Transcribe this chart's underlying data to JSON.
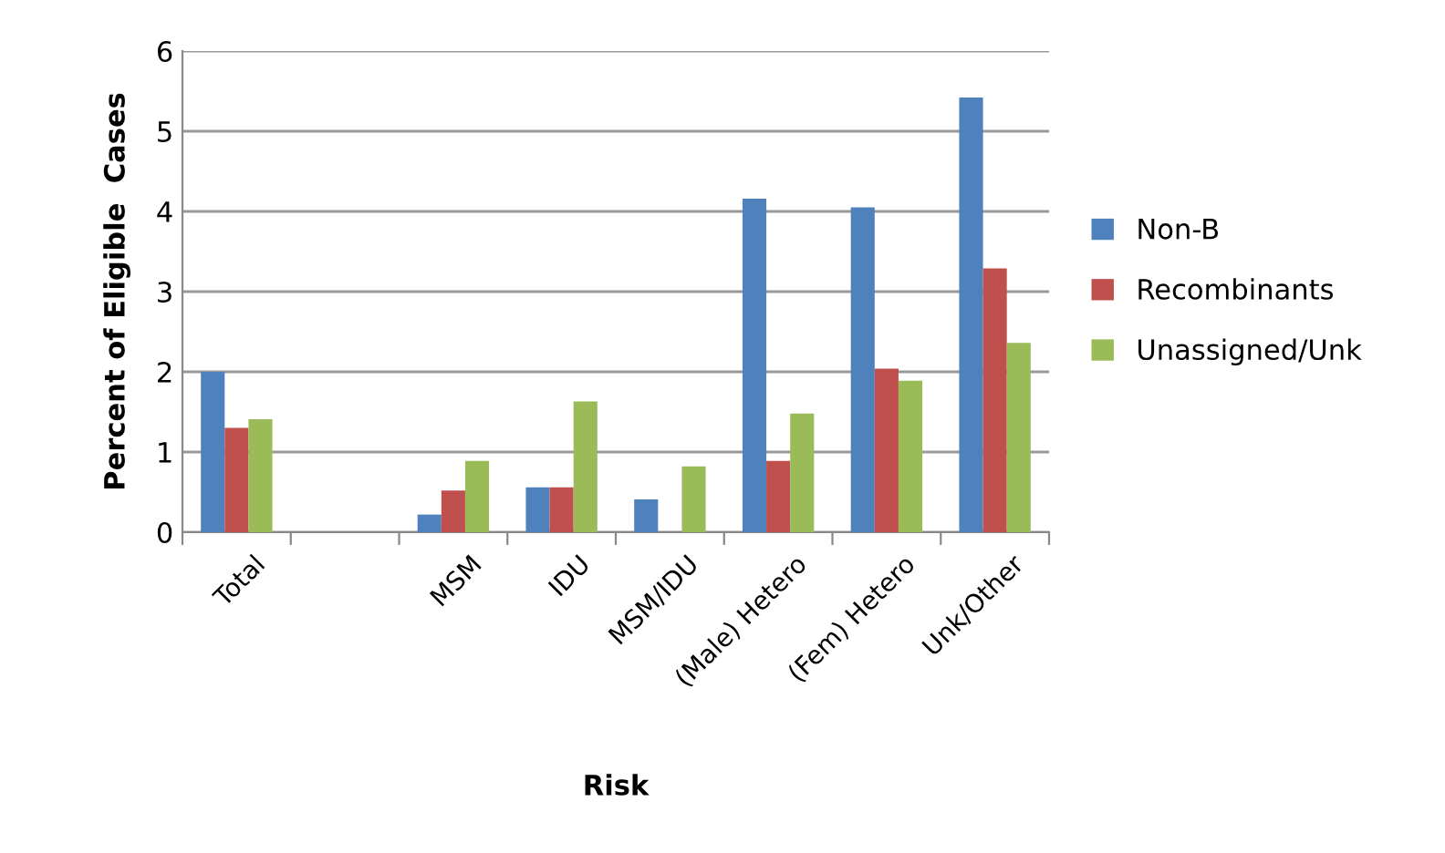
{
  "chart_data": {
    "type": "bar",
    "xlabel": "Risk",
    "ylabel": "Percent of Eligible  Cases",
    "categories": [
      "Total",
      null,
      "MSM",
      "IDU",
      "MSM/IDU",
      "(Male) Hetero",
      "(Fem) Hetero",
      "Unk/Other"
    ],
    "series": [
      {
        "name": "Non-B",
        "color": "#4f81bd",
        "values": [
          2.0,
          null,
          0.22,
          0.56,
          0.41,
          4.16,
          4.05,
          5.42
        ]
      },
      {
        "name": "Recombinants",
        "color": "#c0504d",
        "values": [
          1.3,
          null,
          0.52,
          0.56,
          null,
          0.89,
          2.04,
          3.29
        ]
      },
      {
        "name": "Unassigned/Unk",
        "color": "#9bbb59",
        "values": [
          1.41,
          null,
          0.89,
          1.63,
          0.82,
          1.48,
          1.89,
          2.36
        ]
      }
    ],
    "ylim": [
      0,
      6
    ],
    "yticks": [
      0,
      1,
      2,
      3,
      4,
      5,
      6
    ],
    "grid": "y",
    "legend": "right"
  }
}
